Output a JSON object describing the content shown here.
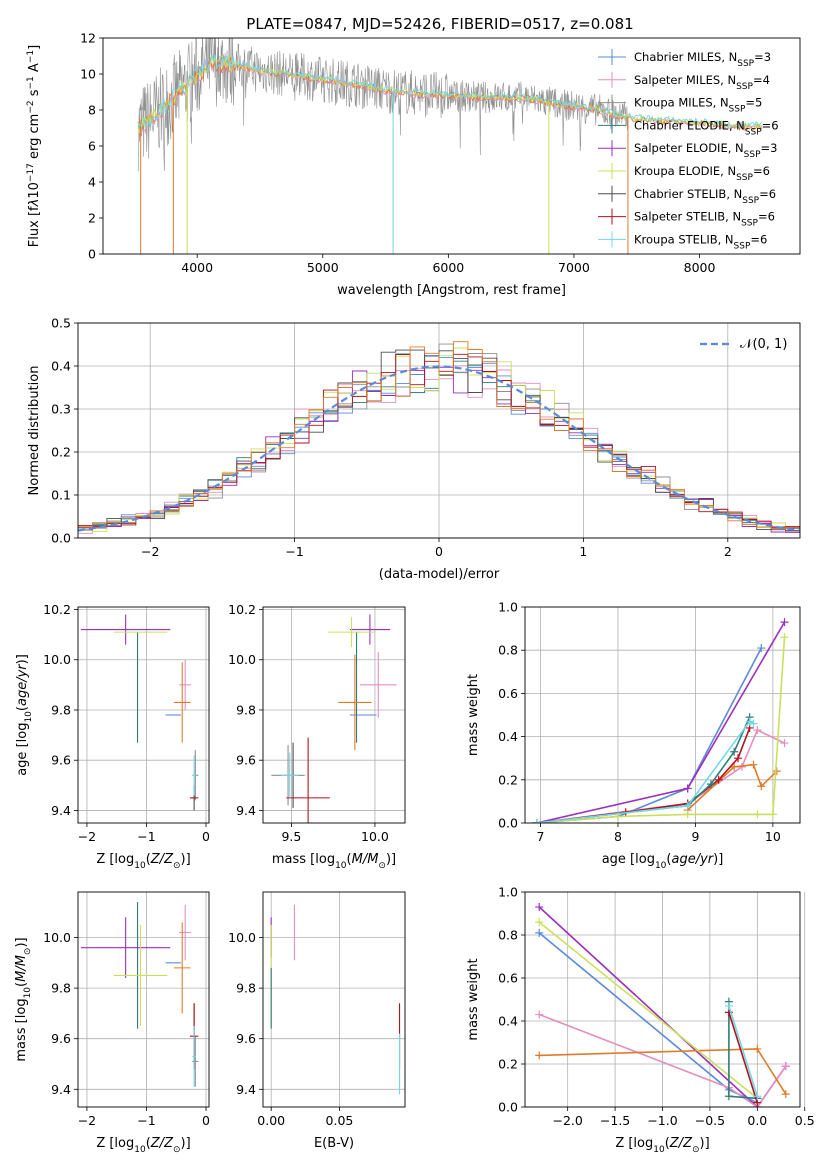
{
  "title": "PLATE=0847, MJD=52426, FIBERID=0517, z=0.081",
  "colors": [
    "#5b8bd8",
    "#e58ec0",
    "#8f8f8f",
    "#2e7d79",
    "#9b2fbf",
    "#cbe05a",
    "#4d4d4d",
    "#b3121b",
    "#73d7e8"
  ],
  "chart_data": [
    {
      "id": "spectrum",
      "type": "line",
      "xlabel": "wavelength [Angstrom, rest frame]",
      "ylabel": "Flux [f",
      "xlim": [
        3250,
        8800
      ],
      "ylim": [
        0,
        12
      ],
      "xticks": [
        "4000",
        "5000",
        "6000",
        "7000",
        "8000"
      ],
      "yticks": [
        "0",
        "2",
        "4",
        "6",
        "8",
        "10",
        "12"
      ],
      "grid": false,
      "legend_position": "top-right",
      "legend": [
        {
          "name": "Chabrier MILES, N",
          "sub": "SSP",
          "val": "=3",
          "color": "#5b8bd8"
        },
        {
          "name": "Salpeter MILES, N",
          "sub": "SSP",
          "val": "=4",
          "color": "#e58ec0"
        },
        {
          "name": "Kroupa MILES, N",
          "sub": "SSP",
          "val": "=5",
          "color": "#8f8f8f"
        },
        {
          "name": "Chabrier ELODIE, N",
          "sub": "SSP",
          "val": "=6",
          "color": "#2e7d79"
        },
        {
          "name": "Salpeter ELODIE, N",
          "sub": "SSP",
          "val": "=3",
          "color": "#9b2fbf"
        },
        {
          "name": "Kroupa ELODIE, N",
          "sub": "SSP",
          "val": "=6",
          "color": "#cbe05a"
        },
        {
          "name": "Chabrier STELIB, N",
          "sub": "SSP",
          "val": "=6",
          "color": "#4d4d4d"
        },
        {
          "name": "Salpeter STELIB, N",
          "sub": "SSP",
          "val": "=6",
          "color": "#b3121b"
        },
        {
          "name": "Kroupa STELIB, N",
          "sub": "SSP",
          "val": "=6",
          "color": "#73d7e8"
        }
      ],
      "model_trend": [
        [
          3530,
          7.0
        ],
        [
          3650,
          7.6
        ],
        [
          3800,
          8.6
        ],
        [
          3950,
          9.6
        ],
        [
          4100,
          10.6
        ],
        [
          4300,
          10.5
        ],
        [
          4500,
          10.2
        ],
        [
          4700,
          10.0
        ],
        [
          5000,
          9.7
        ],
        [
          5300,
          9.4
        ],
        [
          5500,
          9.1
        ],
        [
          5800,
          8.9
        ],
        [
          6000,
          8.8
        ],
        [
          6300,
          8.7
        ],
        [
          6600,
          8.7
        ],
        [
          6900,
          8.3
        ],
        [
          7200,
          8.0
        ],
        [
          7400,
          7.6
        ],
        [
          7700,
          7.4
        ],
        [
          8000,
          7.3
        ],
        [
          8300,
          7.1
        ],
        [
          8500,
          7.1
        ]
      ],
      "absorption_dips": [
        [
          3550,
          0.0
        ],
        [
          3810,
          0.0
        ],
        [
          3920,
          0.0
        ],
        [
          5560,
          0.0
        ],
        [
          6800,
          0.0
        ],
        [
          7430,
          0.0
        ]
      ]
    },
    {
      "id": "residuals",
      "type": "line",
      "xlabel": "(data-model)/error",
      "ylabel": "Normed distribution",
      "xlim": [
        -2.5,
        2.5
      ],
      "ylim": [
        0,
        0.5
      ],
      "xticks": [
        "−2",
        "−1",
        "0",
        "1",
        "2"
      ],
      "yticks": [
        "0.0",
        "0.1",
        "0.2",
        "0.3",
        "0.4",
        "0.5"
      ],
      "grid": true,
      "legend_position": "top-right",
      "legend": [
        {
          "name": "𝒩(0, 1)",
          "color": "#5b8bd8",
          "style": "dashed"
        }
      ],
      "bin_width": 0.1,
      "series_note": "nine step histograms (one per model) following a standard normal density"
    },
    {
      "id": "age_vs_Z",
      "type": "scatter",
      "xlabel": "Z [log",
      "ylabel": "age  [log",
      "xlim": [
        -2.15,
        0.05
      ],
      "ylim": [
        9.35,
        10.21
      ],
      "xticks": [
        "−2",
        "−1",
        "0"
      ],
      "yticks": [
        "9.4",
        "9.6",
        "9.8",
        "10.0",
        "10.2"
      ],
      "grid": true,
      "points": [
        {
          "c": 0,
          "x": -0.55,
          "y": 9.78,
          "xe": 0.13,
          "ye": 0.0
        },
        {
          "c": 1,
          "x": -0.35,
          "y": 9.9,
          "xe": 0.1,
          "ye": 0.1
        },
        {
          "c": 2,
          "x": -0.18,
          "y": 9.54,
          "xe": 0.05,
          "ye": 0.1
        },
        {
          "c": 3,
          "x": -1.15,
          "y": 9.89,
          "xe": 0.0,
          "ye": 0.22
        },
        {
          "c": 4,
          "x": -1.35,
          "y": 10.12,
          "xe": 0.75,
          "ye": 0.06
        },
        {
          "c": 5,
          "x": -1.1,
          "y": 10.11,
          "xe": 0.45,
          "ye": 0.0
        },
        {
          "c": 6,
          "x": -0.2,
          "y": 9.45,
          "xe": 0.0,
          "ye": 0.05
        },
        {
          "c": 7,
          "x": -0.2,
          "y": 9.45,
          "xe": 0.07,
          "ye": 0.0
        },
        {
          "c": 8,
          "x": -0.2,
          "y": 9.54,
          "xe": 0.03,
          "ye": 0.08
        },
        {
          "c": 9,
          "x": -0.4,
          "y": 9.83,
          "xe": 0.14,
          "ye": 0.16
        }
      ]
    },
    {
      "id": "age_vs_mass",
      "type": "scatter",
      "xlabel": "mass [log",
      "ylabel": "",
      "xlim": [
        9.33,
        10.18
      ],
      "ylim": [
        9.35,
        10.21
      ],
      "xticks": [
        "9.5",
        "10.0"
      ],
      "yticks": [
        "9.4",
        "9.6",
        "9.8",
        "10.0",
        "10.2"
      ],
      "grid": true,
      "points": [
        {
          "c": 0,
          "x": 9.93,
          "y": 9.78,
          "xe": 0.08,
          "ye": 0.0
        },
        {
          "c": 1,
          "x": 10.02,
          "y": 9.9,
          "xe": 0.11,
          "ye": 0.13
        },
        {
          "c": 2,
          "x": 9.48,
          "y": 9.54,
          "xe": 0.1,
          "ye": 0.12
        },
        {
          "c": 3,
          "x": 9.89,
          "y": 9.89,
          "xe": 0.0,
          "ye": 0.22
        },
        {
          "c": 4,
          "x": 9.97,
          "y": 10.12,
          "xe": 0.12,
          "ye": 0.06
        },
        {
          "c": 5,
          "x": 9.86,
          "y": 10.11,
          "xe": 0.14,
          "ye": 0.06
        },
        {
          "c": 6,
          "x": 9.51,
          "y": 9.54,
          "xe": 0.0,
          "ye": 0.13
        },
        {
          "c": 7,
          "x": 9.6,
          "y": 9.45,
          "xe": 0.13,
          "ye": 0.24
        },
        {
          "c": 8,
          "x": 9.49,
          "y": 9.54,
          "xe": 0.05,
          "ye": 0.09
        },
        {
          "c": 9,
          "x": 9.88,
          "y": 9.83,
          "xe": 0.1,
          "ye": 0.19
        }
      ]
    },
    {
      "id": "massweight_vs_age",
      "type": "line",
      "xlabel": "age  [log",
      "ylabel": "mass weight",
      "xlim": [
        6.8,
        10.35
      ],
      "ylim": [
        0.0,
        1.0
      ],
      "xticks": [
        "7",
        "8",
        "9",
        "10"
      ],
      "yticks": [
        "0.0",
        "0.2",
        "0.4",
        "0.6",
        "0.8",
        "1.0"
      ],
      "grid": true,
      "series": [
        {
          "c": 0,
          "x": [
            6.95,
            8.0,
            8.9,
            9.85
          ],
          "y": [
            0.0,
            0.03,
            0.16,
            0.81
          ]
        },
        {
          "c": 4,
          "x": [
            6.95,
            8.9,
            10.15
          ],
          "y": [
            0.0,
            0.16,
            0.93
          ]
        },
        {
          "c": 1,
          "x": [
            6.95,
            8.9,
            9.6,
            9.8,
            10.15
          ],
          "y": [
            0.0,
            0.09,
            0.26,
            0.43,
            0.37
          ]
        },
        {
          "c": 9,
          "x": [
            8.9,
            9.5,
            9.75,
            9.85,
            10.05
          ],
          "y": [
            0.06,
            0.26,
            0.27,
            0.17,
            0.24
          ]
        },
        {
          "c": 7,
          "x": [
            6.95,
            8.1,
            8.9,
            9.3,
            9.55,
            9.7
          ],
          "y": [
            0.0,
            0.05,
            0.09,
            0.2,
            0.3,
            0.44
          ]
        },
        {
          "c": 3,
          "x": [
            6.95,
            8.9,
            9.2,
            9.5,
            9.7
          ],
          "y": [
            0.0,
            0.08,
            0.18,
            0.33,
            0.49
          ]
        },
        {
          "c": 5,
          "x": [
            6.95,
            8.0,
            8.9,
            9.8,
            10.0,
            10.15
          ],
          "y": [
            0.0,
            0.03,
            0.04,
            0.04,
            0.04,
            0.86
          ]
        },
        {
          "c": 8,
          "x": [
            6.95,
            8.9,
            9.7,
            9.75
          ],
          "y": [
            0.0,
            0.08,
            0.47,
            0.46
          ]
        }
      ]
    },
    {
      "id": "mass_vs_Z",
      "type": "scatter",
      "xlabel": "Z [log",
      "ylabel": "mass [log",
      "xlim": [
        -2.15,
        0.05
      ],
      "ylim": [
        9.33,
        10.18
      ],
      "xticks": [
        "−2",
        "−1",
        "0"
      ],
      "yticks": [
        "9.4",
        "9.6",
        "9.8",
        "10.0"
      ],
      "grid": true,
      "points": [
        {
          "c": 0,
          "x": -0.55,
          "y": 9.9,
          "xe": 0.13,
          "ye": 0.0
        },
        {
          "c": 1,
          "x": -0.35,
          "y": 10.02,
          "xe": 0.1,
          "ye": 0.11
        },
        {
          "c": 2,
          "x": -0.18,
          "y": 9.51,
          "xe": 0.05,
          "ye": 0.1
        },
        {
          "c": 3,
          "x": -1.15,
          "y": 9.89,
          "xe": 0.0,
          "ye": 0.25
        },
        {
          "c": 4,
          "x": -1.35,
          "y": 9.96,
          "xe": 0.75,
          "ye": 0.12
        },
        {
          "c": 5,
          "x": -1.1,
          "y": 9.85,
          "xe": 0.45,
          "ye": 0.2
        },
        {
          "c": 6,
          "x": -0.2,
          "y": 9.61,
          "xe": 0.0,
          "ye": 0.13
        },
        {
          "c": 7,
          "x": -0.2,
          "y": 9.61,
          "xe": 0.07,
          "ye": 0.13
        },
        {
          "c": 8,
          "x": -0.2,
          "y": 9.53,
          "xe": 0.03,
          "ye": 0.12
        },
        {
          "c": 9,
          "x": -0.4,
          "y": 9.88,
          "xe": 0.14,
          "ye": 0.18
        }
      ]
    },
    {
      "id": "mass_vs_ebv",
      "type": "scatter",
      "xlabel": "E(B-V)",
      "ylabel": "",
      "xlim": [
        -0.006,
        0.098
      ],
      "ylim": [
        9.33,
        10.18
      ],
      "xticks": [
        "0.00",
        "0.05"
      ],
      "yticks": [
        "9.4",
        "9.6",
        "9.8",
        "10.0"
      ],
      "grid": true,
      "points": [
        {
          "c": 4,
          "x": 0.0,
          "y": 10.0,
          "xe": 0.0,
          "ye": 0.08
        },
        {
          "c": 5,
          "x": 0.0,
          "y": 9.85,
          "xe": 0.0,
          "ye": 0.2
        },
        {
          "c": 3,
          "x": 0.0,
          "y": 9.76,
          "xe": 0.0,
          "ye": 0.12
        },
        {
          "c": 1,
          "x": 0.017,
          "y": 10.02,
          "xe": 0.0,
          "ye": 0.11
        },
        {
          "c": 7,
          "x": 0.094,
          "y": 9.61,
          "xe": 0.0,
          "ye": 0.13
        },
        {
          "c": 8,
          "x": 0.094,
          "y": 9.5,
          "xe": 0.0,
          "ye": 0.12
        }
      ]
    },
    {
      "id": "massweight_vs_Z",
      "type": "line",
      "xlabel": "Z [log",
      "ylabel": "mass weight",
      "xlim": [
        -2.45,
        0.45
      ],
      "ylim": [
        0.0,
        1.0
      ],
      "xticks": [
        "−2.0",
        "−1.5",
        "−1.0",
        "−0.5",
        "0.0",
        "0.5"
      ],
      "yticks": [
        "0.0",
        "0.2",
        "0.4",
        "0.6",
        "0.8",
        "1.0"
      ],
      "grid": true,
      "series": [
        {
          "c": 4,
          "x": [
            -2.3,
            0.0,
            0.3
          ],
          "y": [
            0.93,
            0.0,
            0.19
          ]
        },
        {
          "c": 0,
          "x": [
            -2.3,
            -0.3,
            0.0
          ],
          "y": [
            0.81,
            0.08,
            0.02
          ]
        },
        {
          "c": 1,
          "x": [
            -2.3,
            -0.3,
            0.0,
            0.3
          ],
          "y": [
            0.43,
            0.09,
            0.0,
            0.19
          ]
        },
        {
          "c": 9,
          "x": [
            -2.3,
            0.0,
            0.3
          ],
          "y": [
            0.24,
            0.27,
            0.06
          ]
        },
        {
          "c": 5,
          "x": [
            -2.3,
            0.0
          ],
          "y": [
            0.86,
            0.04
          ]
        },
        {
          "c": 3,
          "x": [
            -0.3,
            -0.3,
            0.0
          ],
          "y": [
            0.49,
            0.05,
            0.04
          ]
        },
        {
          "c": 7,
          "x": [
            -0.3,
            0.0
          ],
          "y": [
            0.44,
            0.02
          ]
        },
        {
          "c": 8,
          "x": [
            -0.3,
            0.0
          ],
          "y": [
            0.47,
            0.05
          ]
        }
      ]
    }
  ]
}
